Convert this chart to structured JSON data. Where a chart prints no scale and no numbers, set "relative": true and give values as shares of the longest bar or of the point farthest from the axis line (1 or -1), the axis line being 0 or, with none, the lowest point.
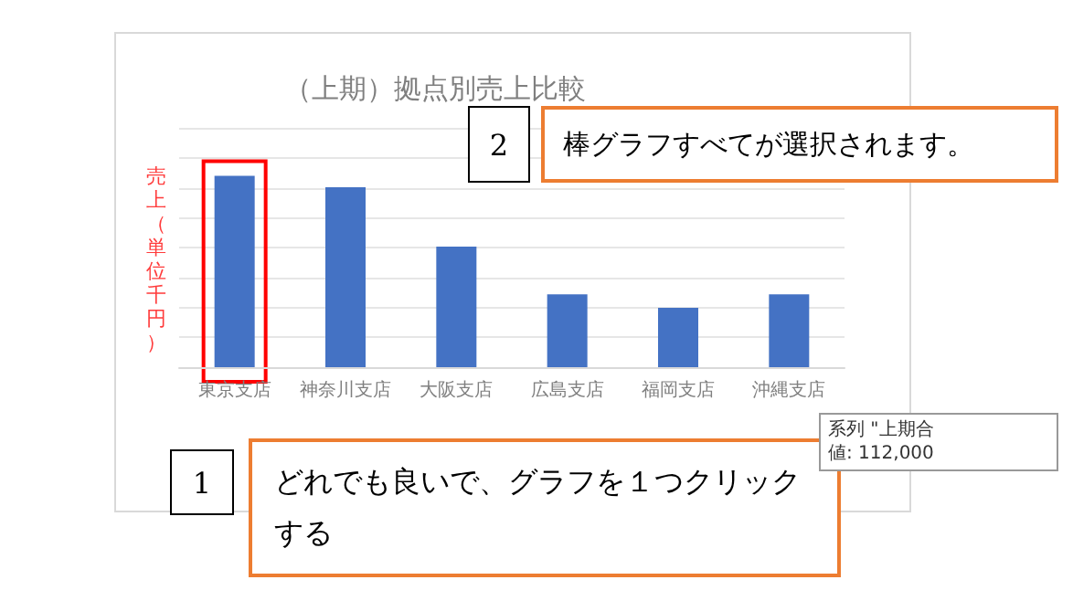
{
  "chart_data": {
    "type": "bar",
    "title": "（上期）拠点別売上比較",
    "ylabel": "売上（単位千円）",
    "categories": [
      "東京支店",
      "神奈川支店",
      "大阪支店",
      "広島支店",
      "福岡支店",
      "沖縄支店"
    ],
    "values": [
      1,
      0.94,
      0.63,
      0.38,
      0.31,
      0.38
    ],
    "color": "#4472c4",
    "relative": true,
    "grid": "y",
    "annotations": [
      "2",
      "棒グラフすべてが選択されます。",
      "1",
      "どれでも良いで、グラフを１つクリックする",
      "系列 \"上期合",
      "値: 112,000"
    ]
  }
}
